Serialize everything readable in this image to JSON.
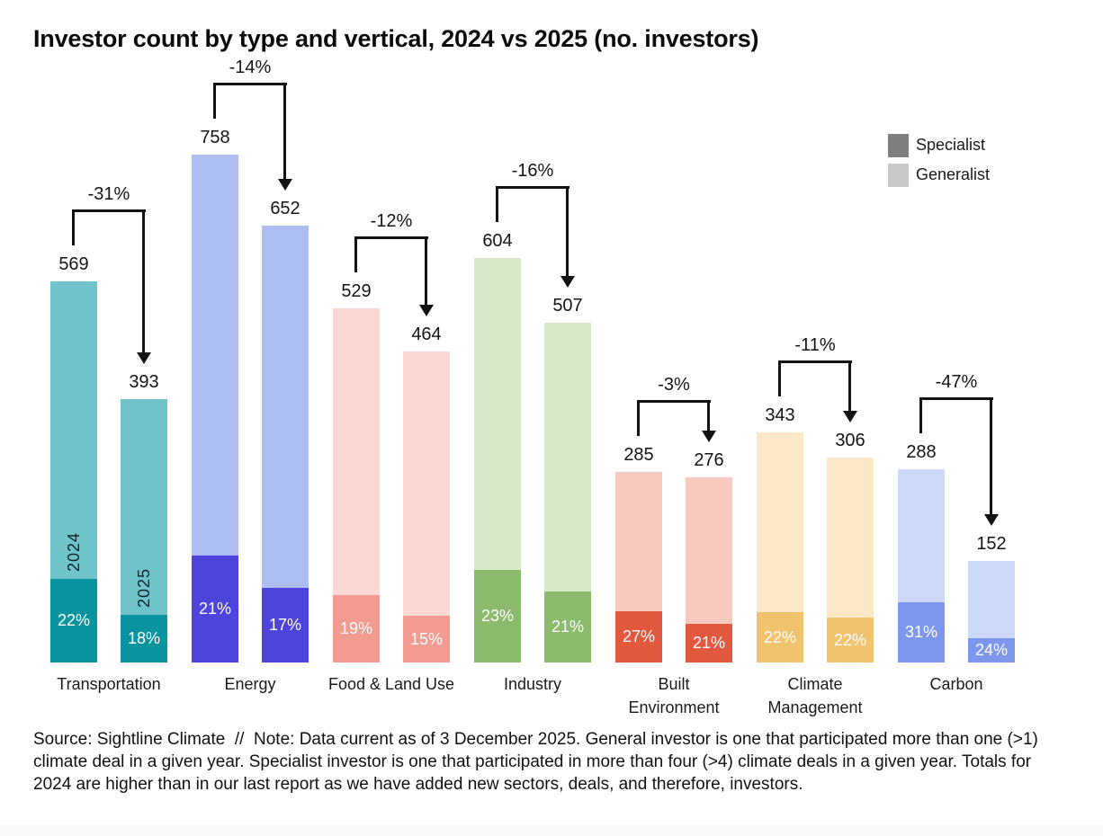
{
  "title": "Investor count by type and vertical, 2024 vs 2025 (no. investors)",
  "legend": {
    "items": [
      {
        "label": "Specialist",
        "color": "#7f7f7f"
      },
      {
        "label": "Generalist",
        "color": "#c9c9c9"
      }
    ]
  },
  "source_note": "Source: Sightline Climate  //  Note: Data current as of 3 December 2025. General investor is one that participated more than one (>1) climate deal in a given year. Specialist investor is one that participated in more than four (>4) climate deals in a given year. Totals for 2024 are higher than in our last report as we have added new sectors, deals, and therefore, investors.",
  "chart_data": {
    "type": "bar",
    "subtype": "grouped stacked columns (2024 vs 2025 per vertical, Specialist share as bottom segment)",
    "title": "Investor count by type and vertical, 2024 vs 2025 (no. investors)",
    "unit": "no. investors",
    "years": [
      "2024",
      "2025"
    ],
    "segments": [
      "Specialist",
      "Generalist"
    ],
    "legend_position": "top-right",
    "grid": false,
    "ylim": [
      0,
      758
    ],
    "groups": [
      {
        "category": "Transportation",
        "category_lines": [
          "Transportation"
        ],
        "change_label": "-31%",
        "show_year_labels": true,
        "colors": {
          "generalist": "#6ec4c8",
          "specialist": "#0a94a0"
        },
        "bars": [
          {
            "year": "2024",
            "total": 569,
            "specialist_pct_label": "22%",
            "specialist_fraction": 0.22
          },
          {
            "year": "2025",
            "total": 393,
            "specialist_pct_label": "18%",
            "specialist_fraction": 0.18
          }
        ]
      },
      {
        "category": "Energy",
        "category_lines": [
          "Energy"
        ],
        "change_label": "-14%",
        "show_year_labels": false,
        "colors": {
          "generalist": "#aebdf2",
          "specialist": "#4d44db"
        },
        "bars": [
          {
            "year": "2024",
            "total": 758,
            "specialist_pct_label": "21%",
            "specialist_fraction": 0.21
          },
          {
            "year": "2025",
            "total": 652,
            "specialist_pct_label": "17%",
            "specialist_fraction": 0.17
          }
        ]
      },
      {
        "category": "Food & Land Use",
        "category_lines": [
          "Food & Land Use"
        ],
        "change_label": "-12%",
        "show_year_labels": false,
        "colors": {
          "generalist": "#fad9d5",
          "specialist": "#f29b91"
        },
        "bars": [
          {
            "year": "2024",
            "total": 529,
            "specialist_pct_label": "19%",
            "specialist_fraction": 0.19
          },
          {
            "year": "2025",
            "total": 464,
            "specialist_pct_label": "15%",
            "specialist_fraction": 0.15
          }
        ]
      },
      {
        "category": "Industry",
        "category_lines": [
          "Industry"
        ],
        "change_label": "-16%",
        "show_year_labels": false,
        "colors": {
          "generalist": "#d8e8ca",
          "specialist": "#8dbb6d"
        },
        "bars": [
          {
            "year": "2024",
            "total": 604,
            "specialist_pct_label": "23%",
            "specialist_fraction": 0.23
          },
          {
            "year": "2025",
            "total": 507,
            "specialist_pct_label": "21%",
            "specialist_fraction": 0.21
          }
        ]
      },
      {
        "category": "Built Environment",
        "category_lines": [
          "Built",
          "Environment"
        ],
        "change_label": "-3%",
        "show_year_labels": false,
        "colors": {
          "generalist": "#f8c9bf",
          "specialist": "#e2593f"
        },
        "bars": [
          {
            "year": "2024",
            "total": 285,
            "specialist_pct_label": "27%",
            "specialist_fraction": 0.27
          },
          {
            "year": "2025",
            "total": 276,
            "specialist_pct_label": "21%",
            "specialist_fraction": 0.21
          }
        ]
      },
      {
        "category": "Climate Management",
        "category_lines": [
          "Climate",
          "Management"
        ],
        "change_label": "-11%",
        "show_year_labels": false,
        "colors": {
          "generalist": "#fae8c8",
          "specialist": "#f2c36e"
        },
        "bars": [
          {
            "year": "2024",
            "total": 343,
            "specialist_pct_label": "22%",
            "specialist_fraction": 0.22
          },
          {
            "year": "2025",
            "total": 306,
            "specialist_pct_label": "22%",
            "specialist_fraction": 0.22
          }
        ]
      },
      {
        "category": "Carbon",
        "category_lines": [
          "Carbon"
        ],
        "change_label": "-47%",
        "show_year_labels": false,
        "colors": {
          "generalist": "#ccd9f8",
          "specialist": "#7d97ed"
        },
        "bars": [
          {
            "year": "2024",
            "total": 288,
            "specialist_pct_label": "31%",
            "specialist_fraction": 0.31
          },
          {
            "year": "2025",
            "total": 152,
            "specialist_pct_label": "24%",
            "specialist_fraction": 0.24
          }
        ]
      }
    ]
  }
}
